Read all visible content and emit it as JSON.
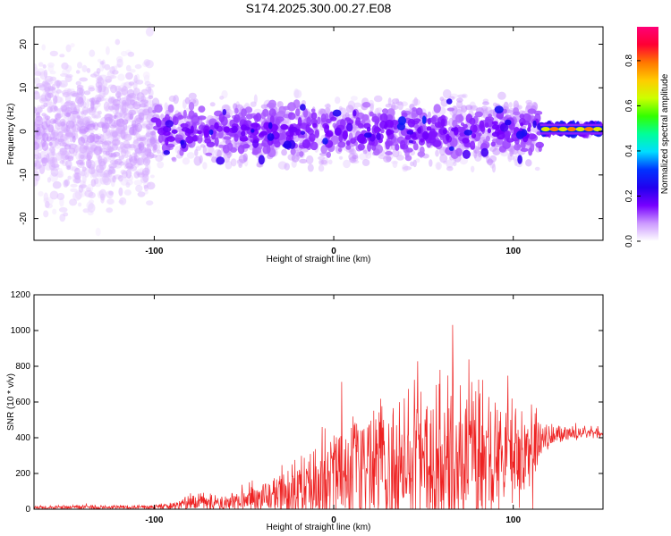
{
  "figure": {
    "title": "S174.2025.300.00.27.E08"
  },
  "chart_data": [
    {
      "type": "heatmap",
      "name": "spectrogram",
      "xlabel": "Height of straight line (km)",
      "ylabel": "Frequency (Hz)",
      "xlim": [
        -167,
        150
      ],
      "ylim": [
        -25,
        24
      ],
      "xticks": [
        -100,
        0,
        100
      ],
      "yticks": [
        -20,
        -10,
        0,
        10,
        20
      ],
      "colorbar": {
        "label": "Normalized spectral amplitude",
        "range": [
          0,
          0.95
        ],
        "ticks": [
          "0.0",
          "0.2",
          "0.4",
          "0.6",
          "0.8"
        ],
        "colormap": [
          "#ffffff",
          "#cc99ff",
          "#7700ff",
          "#2200ee",
          "#0033ff",
          "#00ddff",
          "#00ff99",
          "#33ff00",
          "#ccff00",
          "#ffcc00",
          "#ff7700",
          "#ff0033",
          "#ff0077"
        ]
      },
      "description_regions": [
        {
          "x_range": [
            -167,
            -100
          ],
          "intensity": 0.08,
          "spread_hz": 24
        },
        {
          "x_range": [
            -100,
            115
          ],
          "intensity": 0.15,
          "spread_hz": 10
        },
        {
          "x_range": [
            115,
            150
          ],
          "intensity": 0.9,
          "center_hz": 0.5
        }
      ]
    },
    {
      "type": "line",
      "name": "snr",
      "xlabel": "Height of straight line (km)",
      "ylabel": "SNR (10 * v/v)",
      "xlim": [
        -167,
        150
      ],
      "ylim": [
        0,
        1200
      ],
      "xticks": [
        -100,
        0,
        100
      ],
      "yticks": [
        0,
        200,
        400,
        600,
        800,
        1000,
        1200
      ],
      "color": "#ee2222",
      "envelope": [
        {
          "x": -167,
          "base": 10,
          "amp": 15
        },
        {
          "x": -100,
          "base": 12,
          "amp": 15
        },
        {
          "x": -80,
          "base": 30,
          "amp": 60
        },
        {
          "x": -50,
          "base": 50,
          "amp": 90
        },
        {
          "x": -30,
          "base": 80,
          "amp": 180
        },
        {
          "x": -10,
          "base": 130,
          "amp": 260
        },
        {
          "x": 0,
          "base": 180,
          "amp": 380
        },
        {
          "x": 20,
          "base": 220,
          "amp": 450
        },
        {
          "x": 40,
          "base": 260,
          "amp": 480
        },
        {
          "x": 60,
          "base": 280,
          "amp": 520
        },
        {
          "x": 70,
          "base": 290,
          "amp": 650
        },
        {
          "x": 90,
          "base": 290,
          "amp": 450
        },
        {
          "x": 110,
          "base": 300,
          "amp": 400
        },
        {
          "x": 116,
          "base": 380,
          "amp": 120
        },
        {
          "x": 125,
          "base": 420,
          "amp": 60
        },
        {
          "x": 150,
          "base": 430,
          "amp": 50
        }
      ]
    }
  ]
}
